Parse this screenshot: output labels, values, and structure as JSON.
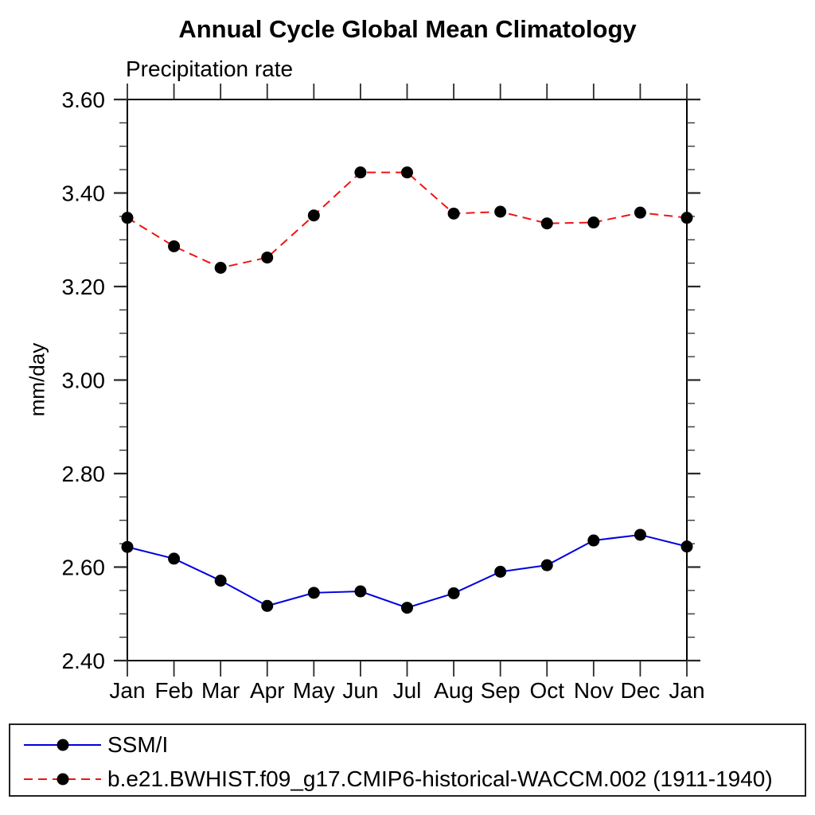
{
  "title": "Annual Cycle Global Mean Climatology",
  "subtitle": "Precipitation rate",
  "ylabel": "mm/day",
  "colors": {
    "obs_line": "#0000e0",
    "model_line": "#f01414",
    "marker": "#000000",
    "axis": "#000000",
    "tick": "#2a2a2a",
    "legend_border": "#222222"
  },
  "chart_data": {
    "type": "line",
    "title": "Annual Cycle Global Mean Climatology",
    "subtitle": "Precipitation rate",
    "ylabel": "mm/day",
    "xlabel": "",
    "categories": [
      "Jan",
      "Feb",
      "Mar",
      "Apr",
      "May",
      "Jun",
      "Jul",
      "Aug",
      "Sep",
      "Oct",
      "Nov",
      "Dec",
      "Jan"
    ],
    "ylim": [
      2.4,
      3.6
    ],
    "ytick_major": 0.2,
    "ytick_minor": 0.05,
    "grid": false,
    "legend_position": "bottom",
    "series": [
      {
        "name": "SSM/I",
        "style": "solid",
        "color": "#0000e0",
        "marker": "circle",
        "marker_color": "#000000",
        "values": [
          2.643,
          2.618,
          2.571,
          2.517,
          2.545,
          2.548,
          2.513,
          2.544,
          2.59,
          2.604,
          2.657,
          2.669,
          2.644
        ]
      },
      {
        "name": "b.e21.BWHIST.f09_g17.CMIP6-historical-WACCM.002 (1911-1940)",
        "style": "dashed",
        "color": "#f01414",
        "marker": "circle",
        "marker_color": "#000000",
        "values": [
          3.347,
          3.286,
          3.24,
          3.262,
          3.352,
          3.444,
          3.444,
          3.356,
          3.36,
          3.335,
          3.337,
          3.358,
          3.347
        ]
      }
    ]
  }
}
